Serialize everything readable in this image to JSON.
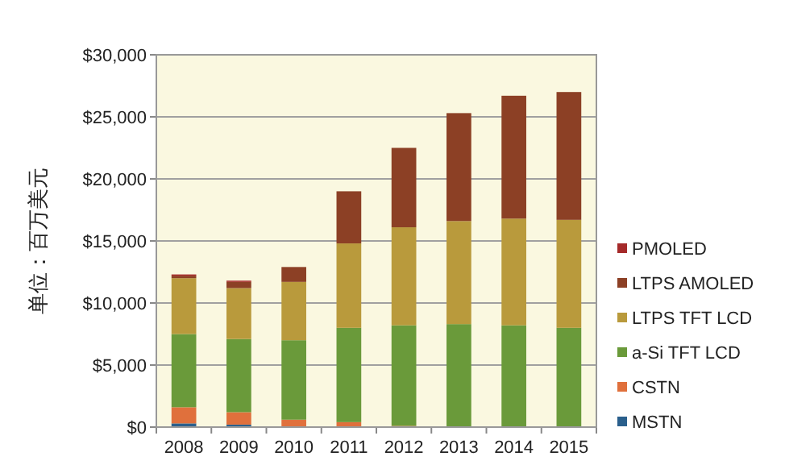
{
  "chart_data": {
    "type": "bar",
    "stacked": true,
    "ylabel": "单位：百万美元",
    "categories": [
      "2008",
      "2009",
      "2010",
      "2011",
      "2012",
      "2013",
      "2014",
      "2015"
    ],
    "ylim": [
      0,
      30000
    ],
    "yticks": [
      {
        "value": 0,
        "label": "$0"
      },
      {
        "value": 5000,
        "label": "$5,000"
      },
      {
        "value": 10000,
        "label": "$10,000"
      },
      {
        "value": 15000,
        "label": "$15,000"
      },
      {
        "value": 20000,
        "label": "$20,000"
      },
      {
        "value": 25000,
        "label": "$25,000"
      },
      {
        "value": 30000,
        "label": "$30,000"
      }
    ],
    "grid": "y",
    "legend": "right",
    "series": [
      {
        "name": "MSTN",
        "color": "#2a5f8c",
        "values": [
          300,
          200,
          0,
          0,
          0,
          0,
          0,
          0
        ]
      },
      {
        "name": "CSTN",
        "color": "#e0703c",
        "values": [
          1300,
          1000,
          600,
          400,
          100,
          0,
          0,
          0
        ]
      },
      {
        "name": "a-Si TFT LCD",
        "color": "#6a9a3a",
        "values": [
          5900,
          5900,
          6400,
          7600,
          8100,
          8300,
          8200,
          8000
        ]
      },
      {
        "name": "LTPS TFT LCD",
        "color": "#b99a3c",
        "values": [
          4500,
          4100,
          4700,
          6800,
          7900,
          8300,
          8600,
          8700
        ]
      },
      {
        "name": "LTPS AMOLED",
        "color": "#8c4025",
        "values": [
          200,
          500,
          1200,
          4200,
          6400,
          8700,
          9900,
          10300
        ]
      },
      {
        "name": "PMOLED",
        "color": "#a52a2a",
        "values": [
          100,
          100,
          0,
          0,
          0,
          0,
          0,
          0
        ]
      }
    ]
  }
}
